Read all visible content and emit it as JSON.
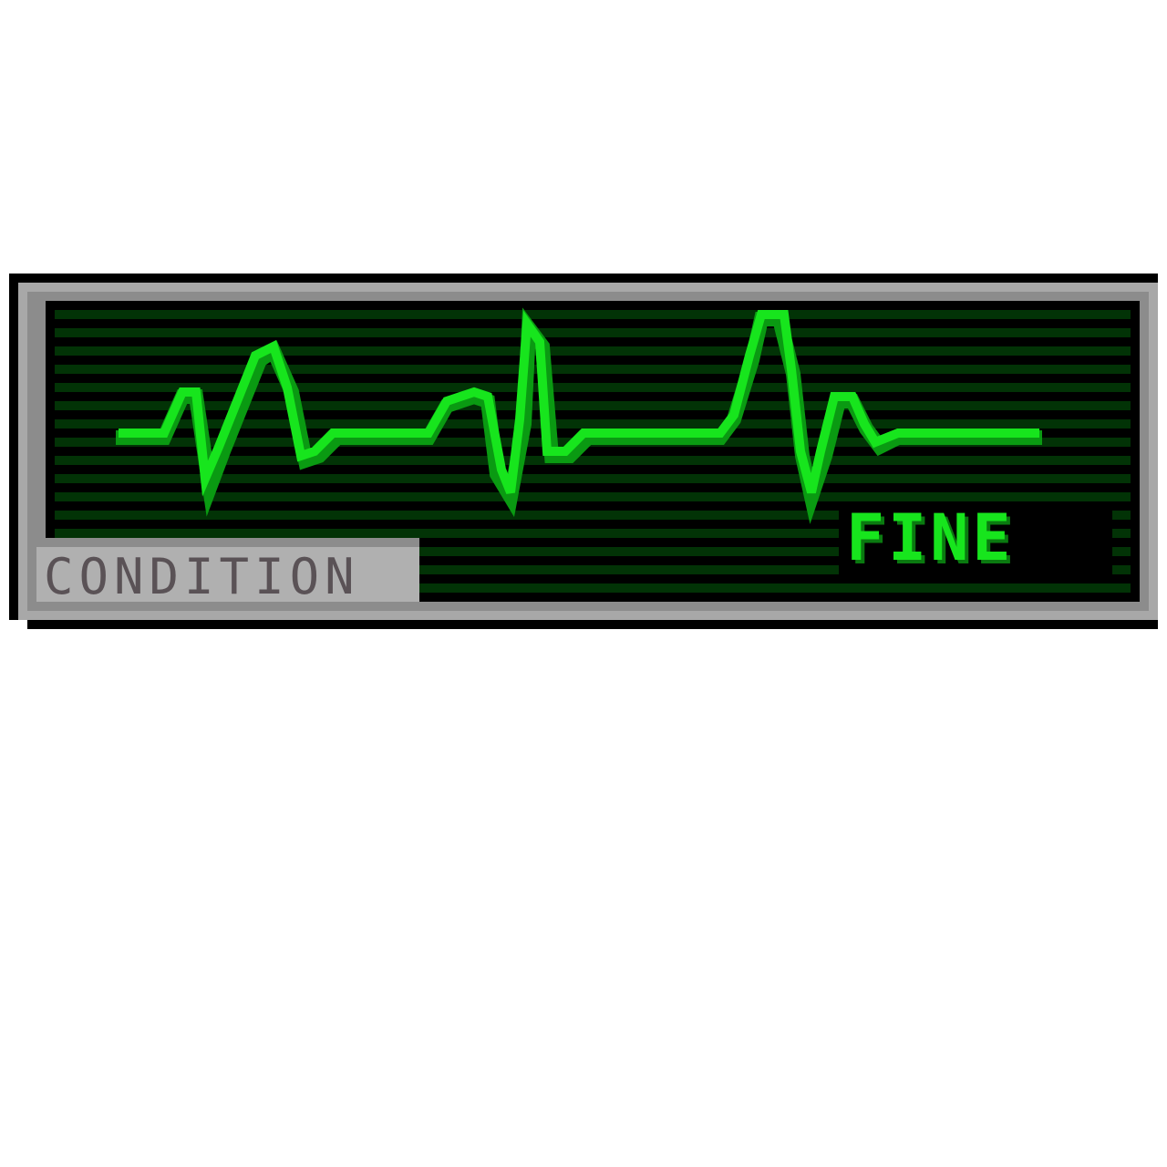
{
  "hud": {
    "label": "CONDITION",
    "status": "FINE"
  },
  "colors": {
    "trace": "#17e51d",
    "trace_shadow": "#0a9a12",
    "screen_bg": "#000000",
    "scanline": "#023306",
    "bezel": "#a8a8a8",
    "label_text": "#5a5256"
  },
  "icons": {
    "ecg": "heartbeat-trace-icon"
  }
}
